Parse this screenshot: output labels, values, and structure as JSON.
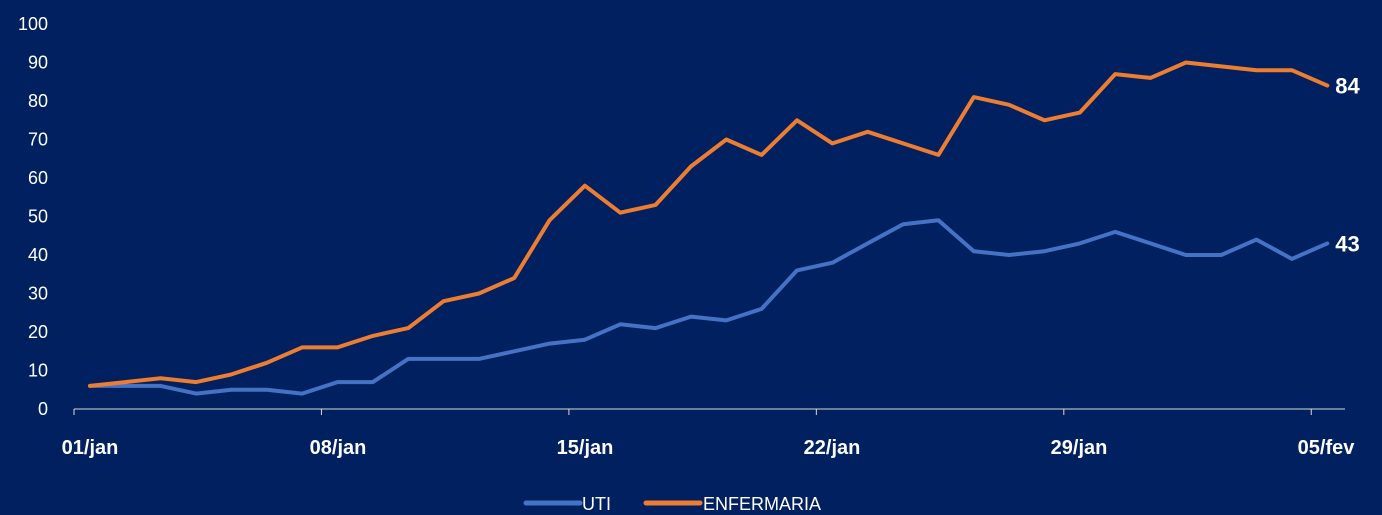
{
  "chart_data": {
    "type": "line",
    "x": [
      "01/jan",
      "02/jan",
      "03/jan",
      "04/jan",
      "05/jan",
      "06/jan",
      "07/jan",
      "08/jan",
      "09/jan",
      "10/jan",
      "11/jan",
      "12/jan",
      "13/jan",
      "14/jan",
      "15/jan",
      "16/jan",
      "17/jan",
      "18/jan",
      "19/jan",
      "20/jan",
      "21/jan",
      "22/jan",
      "23/jan",
      "24/jan",
      "25/jan",
      "26/jan",
      "27/jan",
      "28/jan",
      "29/jan",
      "30/jan",
      "31/jan",
      "01/fev",
      "02/fev",
      "03/fev",
      "04/fev",
      "05/fev"
    ],
    "x_tick_labels": [
      "01/jan",
      "08/jan",
      "15/jan",
      "22/jan",
      "29/jan",
      "05/fev"
    ],
    "series": [
      {
        "name": "UTI",
        "color": "#4472C4",
        "values": [
          6,
          6,
          6,
          4,
          5,
          5,
          4,
          7,
          7,
          13,
          13,
          13,
          15,
          17,
          18,
          22,
          21,
          24,
          23,
          26,
          36,
          38,
          43,
          48,
          49,
          41,
          40,
          41,
          43,
          46,
          43,
          40,
          40,
          44,
          39,
          43
        ],
        "end_label": "43"
      },
      {
        "name": "ENFERMARIA",
        "color": "#ED7D31",
        "values": [
          6,
          7,
          8,
          7,
          9,
          12,
          16,
          16,
          19,
          21,
          28,
          30,
          34,
          49,
          58,
          51,
          53,
          63,
          70,
          66,
          75,
          69,
          72,
          69,
          66,
          81,
          79,
          75,
          77,
          87,
          86,
          90,
          89,
          88,
          88,
          84
        ],
        "end_label": "84"
      }
    ],
    "y_ticks": [
      "0",
      "10",
      "20",
      "30",
      "40",
      "50",
      "60",
      "70",
      "80",
      "90",
      "100"
    ],
    "ylim": [
      0,
      100
    ],
    "grid": false,
    "legend_position": "bottom-center",
    "title": "",
    "xlabel": "",
    "ylabel": ""
  }
}
